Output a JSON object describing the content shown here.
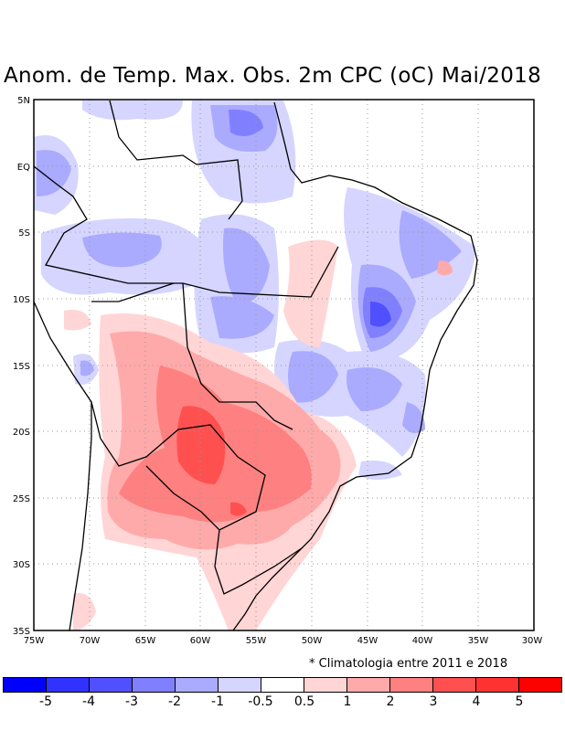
{
  "title": "Anom. de Temp. Max. Obs. 2m CPC (oC) Mai/2018",
  "note": "* Climatologia entre 2011 e 2018",
  "lat_labels": [
    "5N",
    "EQ",
    "5S",
    "10S",
    "15S",
    "20S",
    "25S",
    "30S",
    "35S"
  ],
  "lon_labels": [
    "75W",
    "70W",
    "65W",
    "60W",
    "55W",
    "50W",
    "45W",
    "40W",
    "35W",
    "30W"
  ],
  "colorbar": {
    "colors": [
      "#0000ff",
      "#3232ff",
      "#5050ff",
      "#8080ff",
      "#aaaaff",
      "#d5d5ff",
      "#ffffff",
      "#ffd5d5",
      "#ffaaaa",
      "#ff8080",
      "#ff5050",
      "#ff3232",
      "#ff0000"
    ],
    "labels": [
      "-5",
      "-4",
      "-3",
      "-2",
      "-1",
      "-0.5",
      "0.5",
      "1",
      "2",
      "3",
      "4",
      "5"
    ]
  }
}
